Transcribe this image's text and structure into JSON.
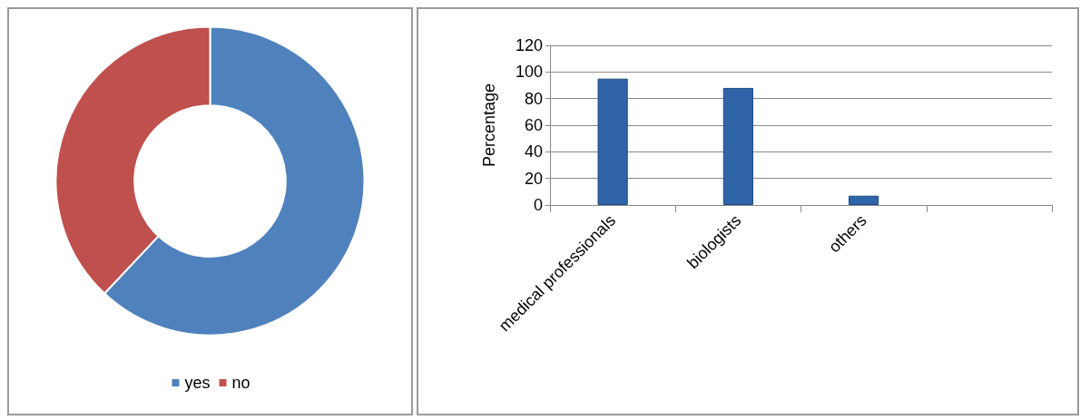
{
  "chart_data": [
    {
      "type": "donut",
      "categories": [
        "yes",
        "no"
      ],
      "values": [
        62,
        38
      ],
      "colors": [
        "#4f81bd",
        "#c0504d"
      ],
      "legend": "bottom"
    },
    {
      "type": "bar",
      "categories": [
        "medical professionals",
        "biologists",
        "others",
        null
      ],
      "values": [
        95,
        88,
        7,
        null
      ],
      "color": "#2f64a8",
      "ylabel": "Percentage",
      "ylim": [
        0,
        120
      ],
      "yticks": [
        0,
        20,
        40,
        60,
        80,
        100,
        120
      ],
      "grid": "y",
      "legend": false
    }
  ]
}
